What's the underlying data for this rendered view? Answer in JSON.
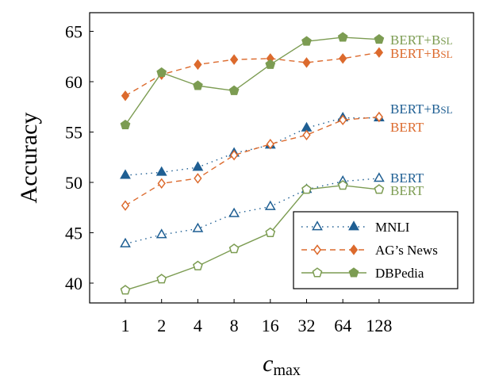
{
  "chart_data": {
    "type": "line",
    "xlabel": "c",
    "xlabel_sub": "max",
    "ylabel": "Accuracy",
    "x": [
      "1",
      "2",
      "4",
      "8",
      "16",
      "32",
      "64",
      "128"
    ],
    "ylim": [
      38,
      66
    ],
    "yticks": [
      40,
      45,
      50,
      55,
      60,
      65
    ],
    "grid": false,
    "legend_position": "bottom-right",
    "colors": {
      "mnli": "#1f5f93",
      "ag": "#dc6a2d",
      "dbp": "#7c9c52"
    },
    "series": [
      {
        "id": "mnli_bert",
        "dataset": "mnli",
        "variant": "bert",
        "marker": "triangle",
        "filled": false,
        "dash": "dotted",
        "values": [
          43.9,
          44.8,
          45.4,
          46.9,
          47.6,
          49.3,
          50.1,
          50.4
        ]
      },
      {
        "id": "mnli_bsl",
        "dataset": "mnli",
        "variant": "bsl",
        "marker": "triangle",
        "filled": true,
        "dash": "dotted",
        "values": [
          50.7,
          51.0,
          51.5,
          52.9,
          53.7,
          55.4,
          56.4,
          56.4
        ]
      },
      {
        "id": "ag_bert",
        "dataset": "ag",
        "variant": "bert",
        "marker": "diamond",
        "filled": false,
        "dash": "dashed",
        "values": [
          47.7,
          49.9,
          50.4,
          52.7,
          53.8,
          54.7,
          56.2,
          56.5
        ]
      },
      {
        "id": "ag_bsl",
        "dataset": "ag",
        "variant": "bsl",
        "marker": "diamond",
        "filled": true,
        "dash": "dashed",
        "values": [
          58.6,
          60.7,
          61.7,
          62.2,
          62.3,
          61.9,
          62.3,
          62.9
        ]
      },
      {
        "id": "dbp_bert",
        "dataset": "dbp",
        "variant": "bert",
        "marker": "pentagon",
        "filled": false,
        "dash": "solid",
        "values": [
          39.3,
          40.4,
          41.7,
          43.4,
          45.0,
          49.3,
          49.7,
          49.3
        ]
      },
      {
        "id": "dbp_bsl",
        "dataset": "dbp",
        "variant": "bsl",
        "marker": "pentagon",
        "filled": true,
        "dash": "solid",
        "values": [
          55.7,
          60.9,
          59.6,
          59.1,
          61.7,
          64.0,
          64.4,
          64.2
        ]
      }
    ],
    "legend": [
      {
        "dataset": "mnli",
        "label": "MNLI"
      },
      {
        "dataset": "ag",
        "label": "AG’s News"
      },
      {
        "dataset": "dbp",
        "label": "DBPedia"
      }
    ],
    "end_labels": [
      {
        "series": "dbp_bsl",
        "base": "BERT+B",
        "suffix": "SL"
      },
      {
        "series": "ag_bsl",
        "base": "BERT+B",
        "suffix": "SL"
      },
      {
        "series": "mnli_bsl",
        "base": "BERT+B",
        "suffix": "SL"
      },
      {
        "series": "ag_bert",
        "base": "BERT",
        "suffix": ""
      },
      {
        "series": "mnli_bert",
        "base": "BERT",
        "suffix": ""
      },
      {
        "series": "dbp_bert",
        "base": "BERT",
        "suffix": ""
      }
    ]
  }
}
